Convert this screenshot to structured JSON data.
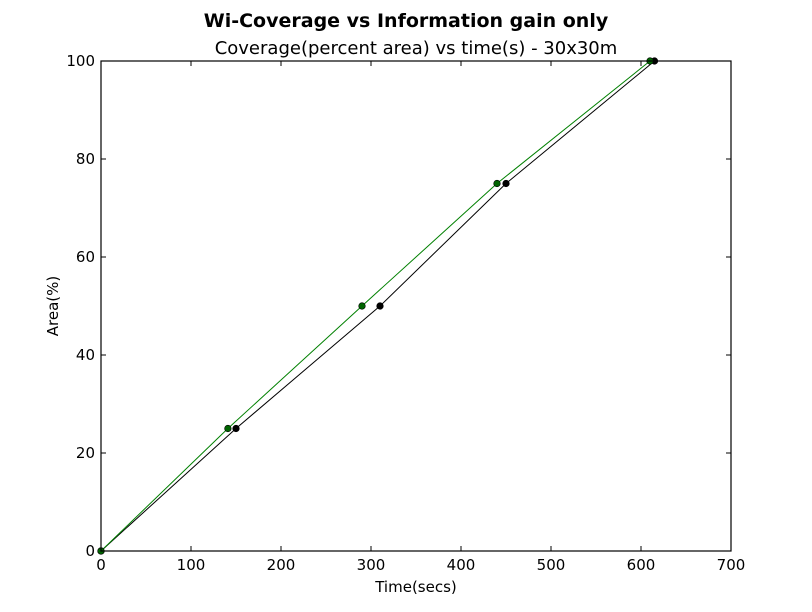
{
  "chart_data": {
    "type": "line",
    "suptitle": "Wi-Coverage vs Information gain only",
    "title": "Coverage(percent area) vs time(s) - 30x30m",
    "xlabel": "Time(secs)",
    "ylabel": "Area(%)",
    "xlim": [
      0,
      700
    ],
    "ylim": [
      0,
      100
    ],
    "xticks": [
      "0",
      "100",
      "200",
      "300",
      "400",
      "500",
      "600",
      "700"
    ],
    "yticks": [
      "0",
      "20",
      "40",
      "60",
      "80",
      "100"
    ],
    "grid": false,
    "legend": "none",
    "series": [
      {
        "color": "#000000",
        "marker_color": "#000000",
        "x": [
          0,
          150,
          310,
          450,
          615
        ],
        "y": [
          0,
          25,
          50,
          75,
          100
        ]
      },
      {
        "color": "#008000",
        "marker_color": "#006400",
        "x": [
          0,
          141,
          290,
          440,
          610
        ],
        "y": [
          0,
          25,
          50,
          75,
          100
        ]
      }
    ]
  }
}
